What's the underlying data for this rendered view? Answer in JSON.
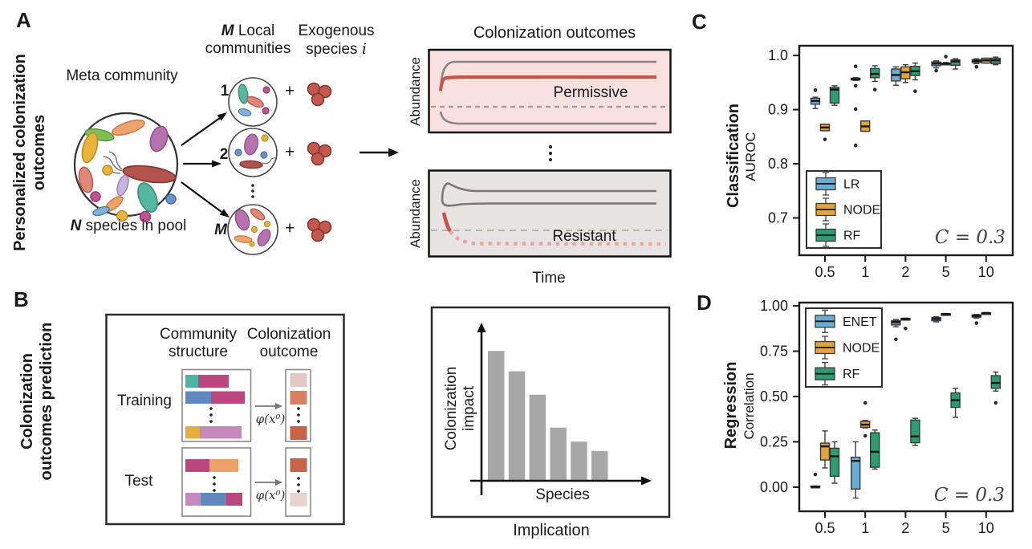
{
  "colors": {
    "lr_blue": "#6BACD5",
    "node_orange": "#E2A33D",
    "rf_green": "#2E9C72",
    "permissive_bg": "#F8E1DE",
    "resistant_bg": "#E7E4E3",
    "colonizer_red": "#C8544A",
    "colonizer_faded": "#E7A89D",
    "native_gray": "#8A8580",
    "bar_gray": "#A7A7A7"
  },
  "panelA": {
    "label": "A",
    "side_label_line1": "Personalized colonization",
    "side_label_line2": "outcomes",
    "meta_community": "Meta community",
    "pool_n": "N",
    "pool_rest": " species in pool",
    "local_m": "M",
    "local_line1_rest": " Local",
    "local_line2": "communities",
    "exo_line1": "Exogenous",
    "exo_line2_prefix": "species ",
    "exo_i": "i",
    "community_1": "1",
    "community_2": "2",
    "community_m": "M",
    "plus": "+",
    "outcomes_title": "Colonization outcomes",
    "abundance": "Abundance",
    "permissive": "Permissive",
    "resistant": "Resistant",
    "time": "Time"
  },
  "panelB": {
    "label": "B",
    "side_label_line1": "Colonization",
    "side_label_line2": "outcomes prediction",
    "community_structure_line1": "Community",
    "community_structure_line2": "structure",
    "colonization_outcome_line1": "Colonization",
    "colonization_outcome_line2": "outcome",
    "training": "Training",
    "test": "Test",
    "phi": "φ(x⁰)"
  },
  "panelC": {
    "label": "C"
  },
  "panelD": {
    "label": "D"
  },
  "chart_data": [
    {
      "id": "classification",
      "type": "boxplot",
      "panel": "C",
      "ylabel_primary": "Classification",
      "ylabel_secondary": "AUROC",
      "annotation": "C = 0.3",
      "categories": [
        "0.5",
        "1",
        "2",
        "5",
        "10"
      ],
      "yticks": [
        "1.0",
        "0.9",
        "0.8",
        "0.7"
      ],
      "ytick_values": [
        1.0,
        0.9,
        0.8,
        0.7
      ],
      "ylim": [
        0.631,
        1.018
      ],
      "legend_position": "lower-left",
      "series": [
        {
          "name": "LR",
          "color": "#6BACD5",
          "boxes": [
            {
              "whislo": 0.902,
              "q1": 0.91,
              "med": 0.916,
              "q3": 0.921,
              "whishi": 0.923,
              "outliers": [
                0.936
              ]
            },
            {
              "whislo": 0.954,
              "q1": 0.955,
              "med": 0.9565,
              "q3": 0.958,
              "whishi": 0.959,
              "outliers": [
                0.98,
                0.944,
                0.901,
                0.834
              ]
            },
            {
              "whislo": 0.945,
              "q1": 0.953,
              "med": 0.964,
              "q3": 0.975,
              "whishi": 0.979,
              "outliers": []
            },
            {
              "whislo": 0.977,
              "q1": 0.981,
              "med": 0.985,
              "q3": 0.988,
              "whishi": 0.99,
              "outliers": [
                0.972
              ]
            },
            {
              "whislo": 0.985,
              "q1": 0.987,
              "med": 0.99,
              "q3": 0.992,
              "whishi": 0.994,
              "outliers": [
                0.979
              ]
            }
          ]
        },
        {
          "name": "NODE",
          "color": "#E2A33D",
          "boxes": [
            {
              "whislo": 0.861,
              "q1": 0.861,
              "med": 0.867,
              "q3": 0.873,
              "whishi": 0.873,
              "outliers": [
                0.845
              ]
            },
            {
              "whislo": 0.86,
              "q1": 0.86,
              "med": 0.869,
              "q3": 0.879,
              "whishi": 0.879,
              "outliers": []
            },
            {
              "whislo": 0.95,
              "q1": 0.957,
              "med": 0.969,
              "q3": 0.979,
              "whishi": 0.983,
              "outliers": []
            },
            {
              "whislo": 0.983,
              "q1": 0.984,
              "med": 0.985,
              "q3": 0.986,
              "whishi": 0.987,
              "outliers": [
                0.998
              ]
            },
            {
              "whislo": 0.986,
              "q1": 0.986,
              "med": 0.991,
              "q3": 0.995,
              "whishi": 0.995,
              "outliers": []
            }
          ]
        },
        {
          "name": "RF",
          "color": "#2E9C72",
          "boxes": [
            {
              "whislo": 0.908,
              "q1": 0.912,
              "med": 0.937,
              "q3": 0.941,
              "whishi": 0.944,
              "outliers": []
            },
            {
              "whislo": 0.952,
              "q1": 0.959,
              "med": 0.966,
              "q3": 0.976,
              "whishi": 0.981,
              "outliers": [
                0.937
              ]
            },
            {
              "whislo": 0.955,
              "q1": 0.963,
              "med": 0.971,
              "q3": 0.98,
              "whishi": 0.986,
              "outliers": [
                0.934
              ]
            },
            {
              "whislo": 0.975,
              "q1": 0.982,
              "med": 0.989,
              "q3": 0.992,
              "whishi": 0.994,
              "outliers": []
            },
            {
              "whislo": 0.983,
              "q1": 0.985,
              "med": 0.991,
              "q3": 0.995,
              "whishi": 0.997,
              "outliers": []
            }
          ]
        }
      ]
    },
    {
      "id": "regression",
      "type": "boxplot",
      "panel": "D",
      "ylabel_primary": "Regression",
      "ylabel_secondary": "Correlation",
      "annotation": "C = 0.3",
      "categories": [
        "0.5",
        "1",
        "2",
        "5",
        "10"
      ],
      "yticks": [
        "1.00",
        "0.75",
        "0.50",
        "0.25",
        "0.00"
      ],
      "ytick_values": [
        1.0,
        0.75,
        0.5,
        0.25,
        0.0
      ],
      "ylim": [
        -0.133,
        1.018
      ],
      "legend_position": "upper-left",
      "series": [
        {
          "name": "ENET",
          "color": "#6BACD5",
          "boxes": [
            {
              "whislo": 0.0,
              "q1": 0.0,
              "med": 0.003,
              "q3": 0.006,
              "whishi": 0.006,
              "outliers": [
                0.07
              ]
            },
            {
              "whislo": -0.06,
              "q1": -0.01,
              "med": 0.145,
              "q3": 0.165,
              "whishi": 0.25,
              "outliers": []
            },
            {
              "whislo": 0.885,
              "q1": 0.895,
              "med": 0.91,
              "q3": 0.918,
              "whishi": 0.925,
              "outliers": [
                0.815
              ]
            },
            {
              "whislo": 0.912,
              "q1": 0.918,
              "med": 0.928,
              "q3": 0.936,
              "whishi": 0.94,
              "outliers": []
            },
            {
              "whislo": 0.933,
              "q1": 0.938,
              "med": 0.945,
              "q3": 0.95,
              "whishi": 0.953,
              "outliers": [
                0.905
              ]
            }
          ]
        },
        {
          "name": "NODE",
          "color": "#E2A33D",
          "boxes": [
            {
              "whislo": 0.106,
              "q1": 0.15,
              "med": 0.225,
              "q3": 0.243,
              "whishi": 0.31,
              "outliers": []
            },
            {
              "whislo": 0.327,
              "q1": 0.33,
              "med": 0.345,
              "q3": 0.363,
              "whishi": 0.368,
              "outliers": [
                0.465,
                0.283
              ]
            },
            {
              "whislo": 0.922,
              "q1": 0.924,
              "med": 0.928,
              "q3": 0.931,
              "whishi": 0.932,
              "outliers": [
                0.875
              ]
            },
            {
              "whislo": 0.951,
              "q1": 0.952,
              "med": 0.955,
              "q3": 0.957,
              "whishi": 0.958,
              "outliers": []
            },
            {
              "whislo": 0.956,
              "q1": 0.957,
              "med": 0.96,
              "q3": 0.962,
              "whishi": 0.963,
              "outliers": []
            }
          ]
        },
        {
          "name": "RF",
          "color": "#2E9C72",
          "boxes": [
            {
              "whislo": 0.022,
              "q1": 0.06,
              "med": 0.17,
              "q3": 0.215,
              "whishi": 0.25,
              "outliers": []
            },
            {
              "whislo": 0.1,
              "q1": 0.11,
              "med": 0.195,
              "q3": 0.3,
              "whishi": 0.315,
              "outliers": []
            },
            {
              "whislo": 0.23,
              "q1": 0.245,
              "med": 0.28,
              "q3": 0.37,
              "whishi": 0.38,
              "outliers": []
            },
            {
              "whislo": 0.385,
              "q1": 0.44,
              "med": 0.48,
              "q3": 0.52,
              "whishi": 0.545,
              "outliers": []
            },
            {
              "whislo": 0.53,
              "q1": 0.545,
              "med": 0.575,
              "q3": 0.615,
              "whishi": 0.635,
              "outliers": [
                0.465
              ]
            }
          ]
        }
      ]
    },
    {
      "id": "colonization-impact",
      "type": "bar",
      "panel": "B",
      "values": [
        0.83,
        0.7,
        0.55,
        0.34,
        0.25,
        0.19
      ],
      "bar_color": "#A7A7A7",
      "ylabel_line1": "Colonization",
      "ylabel_line2": "impact",
      "xlabel": "Species",
      "caption": "Implication"
    }
  ]
}
